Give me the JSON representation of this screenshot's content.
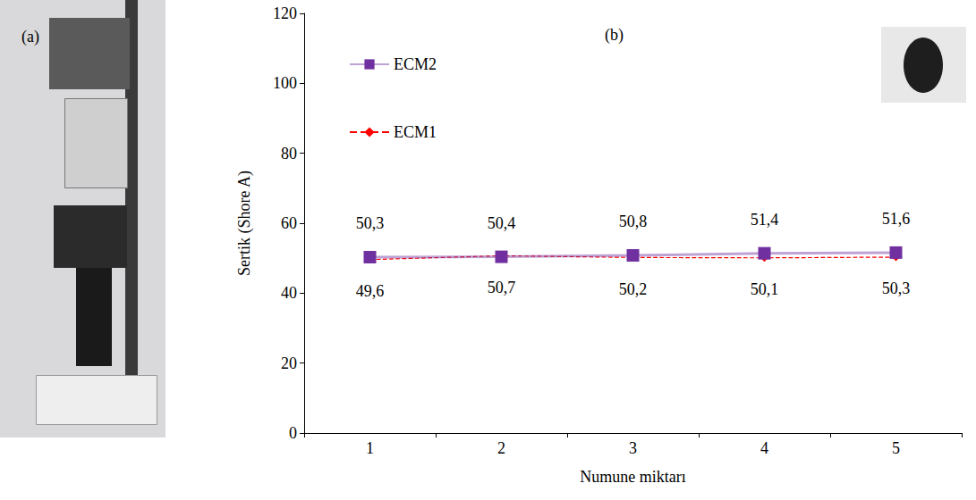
{
  "photo": {
    "label": "(a)"
  },
  "chart_data": {
    "type": "line",
    "annotations": [
      "(b)"
    ],
    "x_label": "Numune miktarı",
    "y_label": "Sertik (Shore A)",
    "categories": [
      "1",
      "2",
      "3",
      "4",
      "5"
    ],
    "series": [
      {
        "name": "ECM2",
        "color": "#7030a0",
        "marker": "square",
        "line_style": "solid",
        "values": [
          50.3,
          50.4,
          50.8,
          51.4,
          51.6
        ],
        "value_labels": [
          "50,3",
          "50,4",
          "50,8",
          "51,4",
          "51,6"
        ]
      },
      {
        "name": "ECM1",
        "color": "#ff0000",
        "marker": "diamond",
        "line_style": "dashed",
        "values": [
          49.6,
          50.7,
          50.2,
          50.1,
          50.3
        ],
        "value_labels": [
          "49,6",
          "50,7",
          "50,2",
          "50,1",
          "50,3"
        ]
      }
    ],
    "ylim": [
      0,
      120
    ],
    "yticks": [
      0,
      20,
      40,
      60,
      80,
      100,
      120
    ],
    "grid": false,
    "legend": "top-left",
    "data_labels": true
  }
}
